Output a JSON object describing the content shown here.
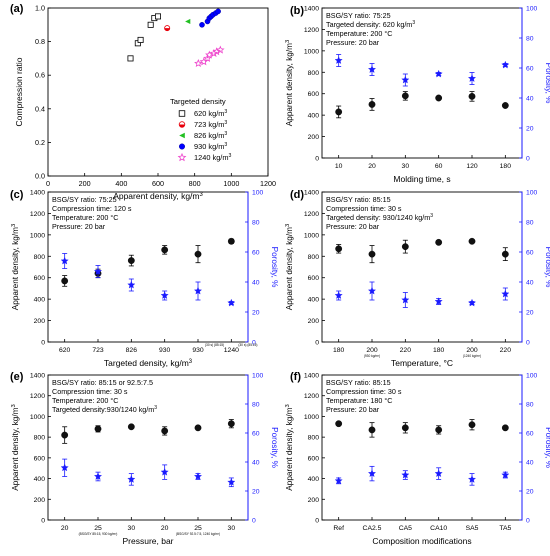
{
  "chart_data": [
    {
      "panel": "(a)",
      "type": "scatter",
      "xlabel": "Apparent density, kg/m",
      "xlabel_sup": "3",
      "ylabel": "Compression ratio",
      "xlim": [
        0,
        1200
      ],
      "ylim": [
        0.0,
        1.0
      ],
      "xticks": [
        0,
        200,
        400,
        600,
        800,
        1000,
        1200
      ],
      "yticks": [
        0.0,
        0.2,
        0.4,
        0.6,
        0.8,
        1.0
      ],
      "legend_title": "Targeted density",
      "legend_position": "bottom-right",
      "series": [
        {
          "name": "620 kg/m",
          "sup": "3",
          "marker": "square-open",
          "color": "#000000",
          "points": [
            [
              450,
              0.7
            ],
            [
              490,
              0.79
            ],
            [
              505,
              0.81
            ],
            [
              560,
              0.9
            ],
            [
              580,
              0.94
            ],
            [
              600,
              0.95
            ]
          ]
        },
        {
          "name": "723 kg/m",
          "sup": "3",
          "marker": "circle-half",
          "color": "#e8000b",
          "points": [
            [
              650,
              0.88
            ]
          ]
        },
        {
          "name": "826 kg/m",
          "sup": "3",
          "marker": "triangle-left",
          "color": "#22c022",
          "points": [
            [
              762,
              0.92
            ]
          ]
        },
        {
          "name": "930 kg/m",
          "sup": "3",
          "marker": "circle",
          "color": "#0000ff",
          "points": [
            [
              840,
              0.9
            ],
            [
              870,
              0.92
            ],
            [
              880,
              0.94
            ],
            [
              890,
              0.95
            ],
            [
              900,
              0.96
            ],
            [
              915,
              0.97
            ],
            [
              928,
              0.98
            ]
          ]
        },
        {
          "name": "1240 kg/m",
          "sup": "3",
          "marker": "star-open",
          "color": "#ee44cc",
          "points": [
            [
              820,
              0.67
            ],
            [
              850,
              0.68
            ],
            [
              870,
              0.7
            ],
            [
              880,
              0.72
            ],
            [
              905,
              0.73
            ],
            [
              920,
              0.74
            ],
            [
              940,
              0.75
            ]
          ]
        }
      ]
    },
    {
      "panel": "(b)",
      "type": "scatter",
      "annotations": [
        "BSG/SY ratio: 75:25",
        "Targeted density: 620 kg/m",
        "Temperature: 200 °C",
        "Pressure: 20 bar"
      ],
      "annotation_sup": [
        null,
        "3",
        null,
        null
      ],
      "xlabel": "Molding time, s",
      "ylabel": "Apparent density, kg/m",
      "ylabel_sup": "3",
      "y2label": "Porosity, %",
      "categories": [
        "10",
        "20",
        "30",
        "60",
        "120",
        "180"
      ],
      "ylim": [
        0,
        1400
      ],
      "yticks": [
        0,
        200,
        400,
        600,
        800,
        1000,
        1200,
        1400
      ],
      "y2lim": [
        0,
        100
      ],
      "y2ticks": [
        0,
        20,
        40,
        60,
        80,
        100
      ],
      "density": [
        430,
        500,
        580,
        560,
        575,
        490
      ],
      "density_err": [
        55,
        55,
        40,
        15,
        45,
        15
      ],
      "porosity": [
        65,
        59,
        52,
        56,
        53,
        62
      ],
      "porosity_err": [
        4,
        4,
        4,
        1,
        4,
        1
      ]
    },
    {
      "panel": "(c)",
      "type": "scatter",
      "annotations": [
        "BSG/SY ratio: 75:25",
        "Compression time: 120 s",
        "Temperature: 200 °C",
        "Pressure: 20 bar"
      ],
      "annotation_sup": [
        null,
        null,
        null,
        null
      ],
      "xlabel": "Targeted density, kg/m",
      "xlabel_sup": "3",
      "ylabel": "Apparent density, kg/m",
      "ylabel_sup": "3",
      "y2label": "Porosity, %",
      "categories": [
        "620",
        "723",
        "826",
        "930",
        "930",
        "1240"
      ],
      "category_notes": [
        "",
        "",
        "",
        "",
        "(30 s) (85:15)",
        "(30 s) (85:15)"
      ],
      "ylim": [
        0,
        1400
      ],
      "yticks": [
        0,
        200,
        400,
        600,
        800,
        1000,
        1200,
        1400
      ],
      "y2lim": [
        0,
        100
      ],
      "y2ticks": [
        0,
        20,
        40,
        60,
        80,
        100
      ],
      "density": [
        570,
        640,
        760,
        860,
        820,
        940
      ],
      "density_err": [
        50,
        40,
        50,
        40,
        80,
        20
      ],
      "porosity": [
        54,
        47,
        38,
        31,
        34,
        26
      ],
      "porosity_err": [
        5,
        4,
        4,
        3,
        6,
        1
      ]
    },
    {
      "panel": "(d)",
      "type": "scatter",
      "annotations": [
        "BSG/SY ratio: 85:15",
        "Compression time: 30 s",
        "Targeted density: 930/1240 kg/m",
        "Pressure: 20 bar"
      ],
      "annotation_sup": [
        null,
        null,
        "3",
        null
      ],
      "xlabel": "Temperature, °C",
      "ylabel": "Apparent density, kg/m",
      "ylabel_sup": "3",
      "y2label": "Porosity, %",
      "categories": [
        "180",
        "200",
        "220",
        "180",
        "200",
        "220"
      ],
      "category_notes": [
        "",
        "(930 kg/m³)",
        "",
        "",
        "(1240 kg/m³)",
        ""
      ],
      "ylim": [
        0,
        1400
      ],
      "yticks": [
        0,
        200,
        400,
        600,
        800,
        1000,
        1200,
        1400
      ],
      "y2lim": [
        0,
        100
      ],
      "y2ticks": [
        0,
        20,
        40,
        60,
        80,
        100
      ],
      "density": [
        870,
        820,
        890,
        930,
        940,
        820
      ],
      "density_err": [
        40,
        80,
        60,
        10,
        10,
        60
      ],
      "porosity": [
        31,
        34,
        28,
        27,
        26,
        32
      ],
      "porosity_err": [
        3,
        6,
        5,
        2,
        1,
        4
      ]
    },
    {
      "panel": "(e)",
      "type": "scatter",
      "annotations": [
        "BSG/SY ratio: 85:15 or 92.5:7.5",
        "Compression time: 30 s",
        "Temperature: 200 °C",
        "Targeted density:930/1240 kg/m"
      ],
      "annotation_sup": [
        null,
        null,
        null,
        "3"
      ],
      "xlabel": "Pressure, bar",
      "ylabel": "Apparent density, kg/m",
      "ylabel_sup": "3",
      "y2label": "Porosity, %",
      "categories": [
        "20",
        "25",
        "30",
        "20",
        "25",
        "30"
      ],
      "category_notes": [
        "",
        "(BSG/SY 85:15, 930 kg/m³)",
        "",
        "",
        "(BSG/SY 92.5:7.5, 1240 kg/m³)",
        ""
      ],
      "ylim": [
        0,
        1400
      ],
      "yticks": [
        0,
        200,
        400,
        600,
        800,
        1000,
        1200,
        1400
      ],
      "y2lim": [
        0,
        100
      ],
      "y2ticks": [
        0,
        20,
        40,
        60,
        80,
        100
      ],
      "density": [
        820,
        880,
        900,
        860,
        890,
        930
      ],
      "density_err": [
        80,
        30,
        10,
        40,
        10,
        40
      ],
      "porosity": [
        36,
        30,
        28,
        33,
        30,
        26
      ],
      "porosity_err": [
        6,
        3,
        4,
        5,
        2,
        3
      ]
    },
    {
      "panel": "(f)",
      "type": "scatter",
      "annotations": [
        "BSG/SY ratio: 85:15",
        "Compression time: 30 s",
        "Temperature: 180 °C",
        "Pressure: 20 bar"
      ],
      "annotation_sup": [
        null,
        null,
        null,
        null
      ],
      "xlabel": "Composition modifications",
      "ylabel": "Apparent density, kg/m",
      "ylabel_sup": "3",
      "y2label": "Porosity, %",
      "categories": [
        "Ref",
        "CA2.5",
        "CA5",
        "CA10",
        "SA5",
        "TA5"
      ],
      "ylim": [
        0,
        1400
      ],
      "yticks": [
        0,
        200,
        400,
        600,
        800,
        1000,
        1200,
        1400
      ],
      "y2lim": [
        0,
        100
      ],
      "y2ticks": [
        0,
        20,
        40,
        60,
        80,
        100
      ],
      "density": [
        930,
        870,
        890,
        870,
        920,
        890
      ],
      "density_err": [
        10,
        70,
        50,
        40,
        50,
        10
      ],
      "porosity": [
        27,
        32,
        31,
        32,
        28,
        31
      ],
      "porosity_err": [
        2,
        5,
        3,
        4,
        4,
        2
      ]
    }
  ]
}
